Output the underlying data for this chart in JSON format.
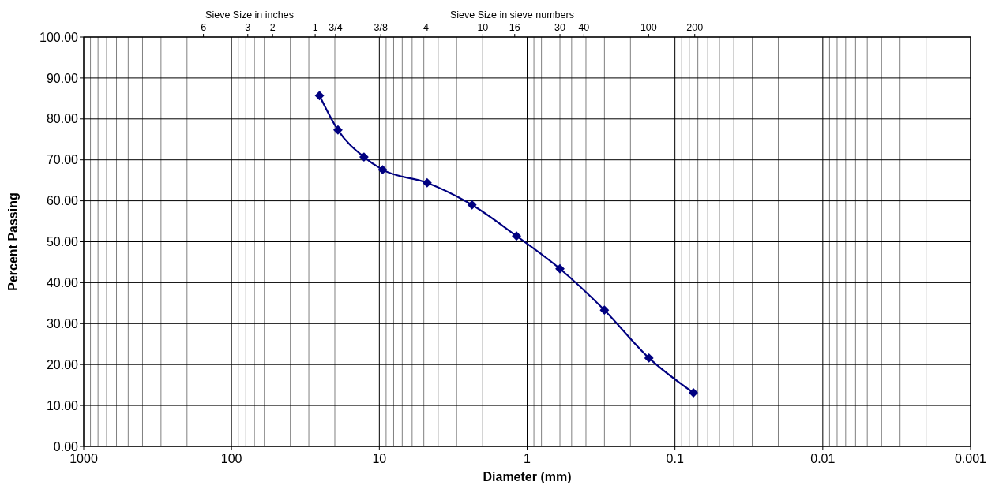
{
  "chart_data": {
    "type": "line",
    "xlabel": "Diameter (mm)",
    "ylabel": "Percent Passing",
    "annotations": [
      "Sieve Size in inches",
      "Sieve Size in sieve numbers",
      "6",
      "3",
      "2",
      "1",
      "3/4",
      "3/8",
      "4",
      "10",
      "16",
      "30",
      "40",
      "100",
      "200"
    ],
    "log": "x",
    "grid": true,
    "marker": "diamond",
    "line_style": "solid",
    "xlim": [
      1000,
      0.001
    ],
    "xticks": [
      1000,
      100,
      10,
      1,
      0.1,
      0.01,
      0.001
    ],
    "ylim": [
      0,
      100
    ],
    "yticks": [
      {
        "value": 0,
        "label": "0.00"
      },
      {
        "value": 10,
        "label": "10.00"
      },
      {
        "value": 20,
        "label": "20.00"
      },
      {
        "value": 30,
        "label": "30.00"
      },
      {
        "value": 40,
        "label": "40.00"
      },
      {
        "value": 50,
        "label": "50.00"
      },
      {
        "value": 60,
        "label": "60.00"
      },
      {
        "value": 70,
        "label": "70.00"
      },
      {
        "value": 80,
        "label": "80.00"
      },
      {
        "value": 90,
        "label": "90.00"
      },
      {
        "value": 100,
        "label": "100.00"
      }
    ],
    "series": [
      {
        "color": "#000080",
        "x": [
          25.4,
          19.05,
          12.7,
          9.5,
          4.75,
          2.36,
          1.18,
          0.6,
          0.3,
          0.15,
          0.075
        ],
        "values": [
          85.7,
          77.3,
          70.7,
          67.6,
          64.4,
          59.0,
          51.4,
          43.4,
          33.3,
          21.6,
          13.1
        ]
      }
    ]
  }
}
